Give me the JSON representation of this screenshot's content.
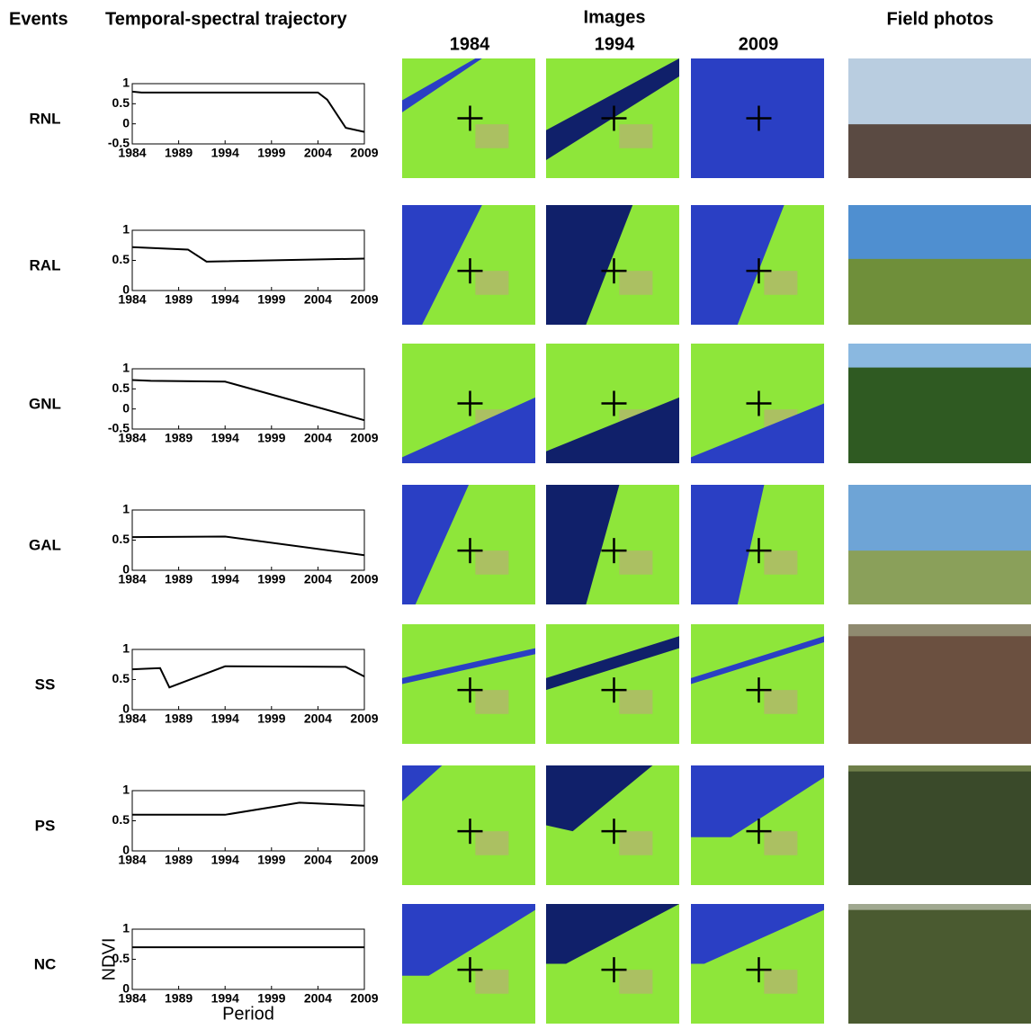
{
  "header": {
    "events": "Events",
    "trajectory": "Temporal-spectral trajectory",
    "images": "Images",
    "years": [
      "1984",
      "1994",
      "2009"
    ],
    "photos": "Field photos"
  },
  "chart_data": [
    {
      "type": "line",
      "title": "RNL",
      "x": [
        1984,
        1985,
        2004,
        2005,
        2007,
        2009
      ],
      "series": [
        {
          "color": "#000000",
          "values": [
            0.8,
            0.78,
            0.78,
            0.6,
            -0.1,
            -0.2
          ]
        }
      ],
      "xlim": [
        1984,
        2009
      ],
      "xticks": [
        1984,
        1989,
        1994,
        1999,
        2004,
        2009
      ],
      "ylim": [
        -0.5,
        1
      ],
      "yticks": [
        -0.5,
        0,
        0.5,
        1
      ]
    },
    {
      "type": "line",
      "title": "RAL",
      "x": [
        1984,
        1990,
        1992,
        2009
      ],
      "series": [
        {
          "color": "#000000",
          "values": [
            0.72,
            0.68,
            0.48,
            0.53
          ]
        }
      ],
      "xlim": [
        1984,
        2009
      ],
      "xticks": [
        1984,
        1989,
        1994,
        1999,
        2004,
        2009
      ],
      "ylim": [
        0,
        1
      ],
      "yticks": [
        0,
        0.5,
        1
      ]
    },
    {
      "type": "line",
      "title": "GNL",
      "x": [
        1984,
        1986,
        1994,
        2009
      ],
      "series": [
        {
          "color": "#000000",
          "values": [
            0.72,
            0.7,
            0.68,
            -0.28
          ]
        }
      ],
      "xlim": [
        1984,
        2009
      ],
      "xticks": [
        1984,
        1989,
        1994,
        1999,
        2004,
        2009
      ],
      "ylim": [
        -0.5,
        1
      ],
      "yticks": [
        -0.5,
        0,
        0.5,
        1
      ]
    },
    {
      "type": "line",
      "title": "GAL",
      "x": [
        1984,
        1994,
        2009
      ],
      "series": [
        {
          "color": "#000000",
          "values": [
            0.55,
            0.56,
            0.25
          ]
        }
      ],
      "xlim": [
        1984,
        2009
      ],
      "xticks": [
        1984,
        1989,
        1994,
        1999,
        2004,
        2009
      ],
      "ylim": [
        0,
        1
      ],
      "yticks": [
        0,
        0.5,
        1
      ]
    },
    {
      "type": "line",
      "title": "SS",
      "x": [
        1984,
        1987,
        1988,
        1994,
        2007,
        2009
      ],
      "series": [
        {
          "color": "#000000",
          "values": [
            0.67,
            0.69,
            0.37,
            0.72,
            0.71,
            0.55
          ]
        }
      ],
      "xlim": [
        1984,
        2009
      ],
      "xticks": [
        1984,
        1989,
        1994,
        1999,
        2004,
        2009
      ],
      "ylim": [
        0,
        1
      ],
      "yticks": [
        0,
        0.5,
        1
      ]
    },
    {
      "type": "line",
      "title": "PS",
      "x": [
        1984,
        1994,
        2002,
        2009
      ],
      "series": [
        {
          "color": "#000000",
          "values": [
            0.6,
            0.6,
            0.8,
            0.75
          ]
        }
      ],
      "xlim": [
        1984,
        2009
      ],
      "xticks": [
        1984,
        1989,
        1994,
        1999,
        2004,
        2009
      ],
      "ylim": [
        0,
        1
      ],
      "yticks": [
        0,
        0.5,
        1
      ]
    },
    {
      "type": "line",
      "title": "NC",
      "x": [
        1984,
        2009
      ],
      "series": [
        {
          "color": "#000000",
          "values": [
            0.7,
            0.7
          ]
        }
      ],
      "xlim": [
        1984,
        2009
      ],
      "xticks": [
        1984,
        1989,
        1994,
        1999,
        2004,
        2009
      ],
      "ylim": [
        0,
        1
      ],
      "yticks": [
        0,
        0.5,
        1
      ],
      "ylabel": "NDVI",
      "xlabel": "Period"
    }
  ]
}
